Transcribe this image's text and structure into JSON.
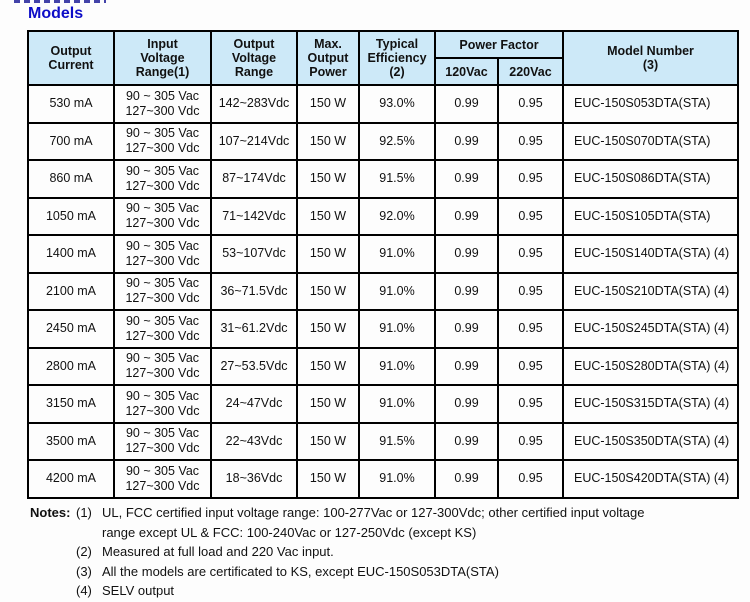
{
  "page": {
    "title": "Models"
  },
  "colors": {
    "title_blue": "#0d0dc7",
    "header_bg": "#cde9f8",
    "border": "#000000"
  },
  "table": {
    "header": {
      "output_current": [
        "Output",
        "Current"
      ],
      "input_voltage": [
        "Input",
        "Voltage",
        "Range(1)"
      ],
      "output_voltage": [
        "Output",
        "Voltage",
        "Range"
      ],
      "max_output_power": [
        "Max.",
        "Output",
        "Power"
      ],
      "typical_efficiency": [
        "Typical",
        "Efficiency",
        "(2)"
      ],
      "power_factor": "Power Factor",
      "pf_120": "120Vac",
      "pf_220": "220Vac",
      "model_number": [
        "Model Number",
        "(3)"
      ]
    },
    "rows": [
      {
        "output_current": "530 mA",
        "input_voltage": [
          "90 ~ 305 Vac",
          "127~300 Vdc"
        ],
        "output_voltage": "142~283Vdc",
        "max_output_power": "150 W",
        "typical_efficiency": "93.0%",
        "pf_120": "0.99",
        "pf_220": "0.95",
        "model_number": "EUC-150S053DTA(STA)"
      },
      {
        "output_current": "700 mA",
        "input_voltage": [
          "90 ~ 305 Vac",
          "127~300 Vdc"
        ],
        "output_voltage": "107~214Vdc",
        "max_output_power": "150 W",
        "typical_efficiency": "92.5%",
        "pf_120": "0.99",
        "pf_220": "0.95",
        "model_number": "EUC-150S070DTA(STA)"
      },
      {
        "output_current": "860 mA",
        "input_voltage": [
          "90 ~ 305 Vac",
          "127~300 Vdc"
        ],
        "output_voltage": "87~174Vdc",
        "max_output_power": "150 W",
        "typical_efficiency": "91.5%",
        "pf_120": "0.99",
        "pf_220": "0.95",
        "model_number": "EUC-150S086DTA(STA)"
      },
      {
        "output_current": "1050 mA",
        "input_voltage": [
          "90 ~ 305 Vac",
          "127~300 Vdc"
        ],
        "output_voltage": "71~142Vdc",
        "max_output_power": "150 W",
        "typical_efficiency": "92.0%",
        "pf_120": "0.99",
        "pf_220": "0.95",
        "model_number": "EUC-150S105DTA(STA)"
      },
      {
        "output_current": "1400 mA",
        "input_voltage": [
          "90 ~ 305 Vac",
          "127~300 Vdc"
        ],
        "output_voltage": "53~107Vdc",
        "max_output_power": "150 W",
        "typical_efficiency": "91.0%",
        "pf_120": "0.99",
        "pf_220": "0.95",
        "model_number": "EUC-150S140DTA(STA) (4)"
      },
      {
        "output_current": "2100 mA",
        "input_voltage": [
          "90 ~ 305 Vac",
          "127~300 Vdc"
        ],
        "output_voltage": "36~71.5Vdc",
        "max_output_power": "150 W",
        "typical_efficiency": "91.0%",
        "pf_120": "0.99",
        "pf_220": "0.95",
        "model_number": "EUC-150S210DTA(STA) (4)"
      },
      {
        "output_current": "2450 mA",
        "input_voltage": [
          "90 ~ 305 Vac",
          "127~300 Vdc"
        ],
        "output_voltage": "31~61.2Vdc",
        "max_output_power": "150 W",
        "typical_efficiency": "91.0%",
        "pf_120": "0.99",
        "pf_220": "0.95",
        "model_number": "EUC-150S245DTA(STA) (4)"
      },
      {
        "output_current": "2800 mA",
        "input_voltage": [
          "90 ~ 305 Vac",
          "127~300 Vdc"
        ],
        "output_voltage": "27~53.5Vdc",
        "max_output_power": "150 W",
        "typical_efficiency": "91.0%",
        "pf_120": "0.99",
        "pf_220": "0.95",
        "model_number": "EUC-150S280DTA(STA) (4)"
      },
      {
        "output_current": "3150 mA",
        "input_voltage": [
          "90 ~ 305 Vac",
          "127~300 Vdc"
        ],
        "output_voltage": "24~47Vdc",
        "max_output_power": "150 W",
        "typical_efficiency": "91.0%",
        "pf_120": "0.99",
        "pf_220": "0.95",
        "model_number": "EUC-150S315DTA(STA) (4)"
      },
      {
        "output_current": "3500 mA",
        "input_voltage": [
          "90 ~ 305 Vac",
          "127~300 Vdc"
        ],
        "output_voltage": "22~43Vdc",
        "max_output_power": "150 W",
        "typical_efficiency": "91.5%",
        "pf_120": "0.99",
        "pf_220": "0.95",
        "model_number": "EUC-150S350DTA(STA) (4)"
      },
      {
        "output_current": "4200 mA",
        "input_voltage": [
          "90 ~ 305 Vac",
          "127~300 Vdc"
        ],
        "output_voltage": "18~36Vdc",
        "max_output_power": "150 W",
        "typical_efficiency": "91.0%",
        "pf_120": "0.99",
        "pf_220": "0.95",
        "model_number": "EUC-150S420DTA(STA) (4)"
      }
    ]
  },
  "notes": {
    "label": "Notes:",
    "items": [
      {
        "num": "(1)",
        "lines": [
          "UL, FCC certified input voltage range: 100-277Vac or 127-300Vdc; other certified input voltage",
          "range except UL & FCC: 100-240Vac or 127-250Vdc (except KS)"
        ]
      },
      {
        "num": "(2)",
        "lines": [
          "Measured at full load and 220 Vac input."
        ]
      },
      {
        "num": "(3)",
        "lines": [
          "All the models are certificated to KS, except EUC-150S053DTA(STA)"
        ]
      },
      {
        "num": "(4)",
        "lines": [
          "SELV output"
        ]
      }
    ]
  }
}
